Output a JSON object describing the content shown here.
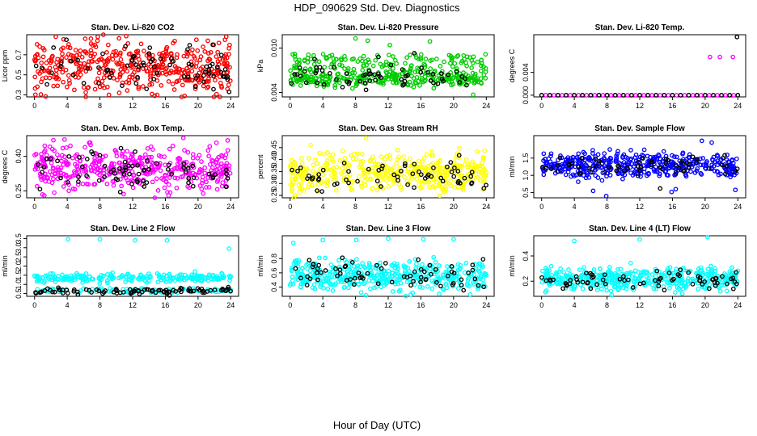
{
  "figure": {
    "title": "HDP_090629  Std. Dev. Diagnostics",
    "xlabel": "Hour of Day (UTC)"
  },
  "chart_data": [
    {
      "type": "scatter",
      "title": "Stan. Dev. Li-820 CO2",
      "ylabel": "Licor ppm",
      "xlim": [
        0,
        24
      ],
      "ylim": [
        0.28,
        0.9
      ],
      "x_ticks": [
        "0",
        "4",
        "8",
        "12",
        "16",
        "20",
        "24"
      ],
      "y_ticks": [
        {
          "v": 0.3,
          "label": "0.3"
        },
        {
          "v": 0.5,
          "label": "0.5"
        },
        {
          "v": 0.7,
          "label": "0.7"
        }
      ],
      "grid": false,
      "series": [
        {
          "color": "#ff0000",
          "count": 430,
          "center": 0.58,
          "spread": 0.13,
          "outliers": [
            [
              2.6,
              0.88
            ],
            [
              6.2,
              0.86
            ],
            [
              7.7,
              0.84
            ],
            [
              9.1,
              0.3
            ],
            [
              19.8,
              0.85
            ],
            [
              21.2,
              0.84
            ],
            [
              23.6,
              0.36
            ]
          ]
        },
        {
          "color": "#000000",
          "count": 70,
          "center": 0.56,
          "spread": 0.1,
          "outliers": [
            [
              3.9,
              0.85
            ],
            [
              13.7,
              0.36
            ],
            [
              21.8,
              0.8
            ],
            [
              23.8,
              0.33
            ]
          ]
        }
      ]
    },
    {
      "type": "scatter",
      "title": "Stan. Dev. Li-820 Pressure",
      "ylabel": "kPa",
      "xlim": [
        0,
        24
      ],
      "ylim": [
        0.0034,
        0.0118
      ],
      "x_ticks": [
        "0",
        "4",
        "8",
        "12",
        "16",
        "20",
        "24"
      ],
      "y_ticks": [
        {
          "v": 0.004,
          "label": "0.004"
        },
        {
          "v": 0.01,
          "label": "0.010"
        }
      ],
      "grid": false,
      "series": [
        {
          "color": "#00cc00",
          "count": 420,
          "center": 0.0058,
          "spread": 0.0005,
          "upper_band": [
            0.0066,
            0.0092
          ],
          "outliers": [
            [
              8.0,
              0.0113
            ],
            [
              9.5,
              0.011
            ],
            [
              12.2,
              0.0104
            ],
            [
              17.1,
              0.0109
            ],
            [
              22.4,
              0.0037
            ]
          ]
        },
        {
          "color": "#000000",
          "count": 60,
          "center": 0.006,
          "spread": 0.0008,
          "outliers": [
            [
              3.0,
              0.0085
            ],
            [
              10.8,
              0.0088
            ],
            [
              15.2,
              0.0093
            ]
          ]
        }
      ]
    },
    {
      "type": "scatter",
      "title": "Stan. Dev. Li-820 Temp.",
      "ylabel": "degrees C",
      "xlim": [
        0,
        24
      ],
      "ylim": [
        -0.0003,
        0.0106
      ],
      "x_ticks": [
        "0",
        "4",
        "8",
        "12",
        "16",
        "20",
        "24"
      ],
      "y_ticks": [
        {
          "v": 0.0,
          "label": "0.000"
        },
        {
          "v": 0.004,
          "label": "0.004"
        }
      ],
      "grid": false,
      "series": [
        {
          "color": "#ff00ff",
          "count": 49,
          "center": 0.0,
          "spread": 0.0,
          "line": true,
          "outliers": [
            [
              20.6,
              0.0067
            ],
            [
              21.8,
              0.0067
            ],
            [
              23.4,
              0.0067
            ]
          ]
        },
        {
          "color": "#000000",
          "count": 25,
          "center": 0.0,
          "spread": 0.0,
          "line": true,
          "outliers": [
            [
              23.9,
              0.0102
            ]
          ]
        }
      ]
    },
    {
      "type": "scatter",
      "title": "Stan. Dev. Amb. Box Temp.",
      "ylabel": "degrees C",
      "xlim": [
        0,
        24
      ],
      "ylim": [
        0.22,
        0.49
      ],
      "x_ticks": [
        "0",
        "4",
        "8",
        "12",
        "16",
        "20",
        "24"
      ],
      "y_ticks": [
        {
          "v": 0.25,
          "label": "0.25"
        },
        {
          "v": 0.4,
          "label": "0.40"
        }
      ],
      "grid": false,
      "series": [
        {
          "color": "#ff00ff",
          "count": 430,
          "center": 0.35,
          "spread": 0.045,
          "outliers": [
            [
              2.3,
              0.47
            ],
            [
              6.8,
              0.46
            ],
            [
              18.2,
              0.48
            ],
            [
              1.2,
              0.23
            ],
            [
              16.4,
              0.23
            ]
          ]
        },
        {
          "color": "#000000",
          "count": 70,
          "center": 0.34,
          "spread": 0.04,
          "outliers": [
            [
              19.4,
              0.27
            ],
            [
              11.9,
              0.28
            ]
          ]
        }
      ]
    },
    {
      "type": "scatter",
      "title": "Stan. Dev. Gas Stream RH",
      "ylabel": "percent",
      "xlim": [
        0,
        24
      ],
      "ylim": [
        0.24,
        0.5
      ],
      "x_ticks": [
        "0",
        "4",
        "8",
        "12",
        "16",
        "20",
        "24"
      ],
      "y_ticks": [
        {
          "v": 0.25,
          "label": "0.25"
        },
        {
          "v": 0.3,
          "label": "0.30"
        },
        {
          "v": 0.35,
          "label": "0.35"
        },
        {
          "v": 0.4,
          "label": "0.40"
        },
        {
          "v": 0.45,
          "label": "0.45"
        }
      ],
      "grid": false,
      "series": [
        {
          "color": "#ffff00",
          "count": 430,
          "center": 0.345,
          "spread": 0.04,
          "outliers": [
            [
              9.3,
              0.49
            ],
            [
              2.5,
              0.46
            ],
            [
              0.6,
              0.25
            ]
          ]
        },
        {
          "color": "#000000",
          "count": 60,
          "center": 0.335,
          "spread": 0.03,
          "outliers": [
            [
              3.3,
              0.27
            ],
            [
              23.7,
              0.28
            ]
          ]
        }
      ]
    },
    {
      "type": "scatter",
      "title": "Stan. Dev. Sample Flow",
      "ylabel": "ml/min",
      "xlim": [
        0,
        24
      ],
      "ylim": [
        0.35,
        2.15
      ],
      "x_ticks": [
        "0",
        "4",
        "8",
        "12",
        "16",
        "20",
        "24"
      ],
      "y_ticks": [
        {
          "v": 0.5,
          "label": "0.5"
        },
        {
          "v": 1.0,
          "label": "1.0"
        },
        {
          "v": 1.5,
          "label": "1.5"
        }
      ],
      "grid": false,
      "series": [
        {
          "color": "#0000ff",
          "count": 430,
          "center": 1.3,
          "spread": 0.18,
          "outliers": [
            [
              7.9,
              0.4
            ],
            [
              6.3,
              0.55
            ],
            [
              15.9,
              0.52
            ],
            [
              16.4,
              0.6
            ],
            [
              19.6,
              2.0
            ],
            [
              20.8,
              1.95
            ],
            [
              23.7,
              0.58
            ]
          ]
        },
        {
          "color": "#000000",
          "count": 60,
          "center": 1.28,
          "spread": 0.14,
          "outliers": [
            [
              14.5,
              0.62
            ],
            [
              23.6,
              1.1
            ]
          ]
        }
      ]
    },
    {
      "type": "scatter",
      "title": "Stan. Dev. Line 2 Flow",
      "ylabel": "ml/min",
      "xlim": [
        0,
        24
      ],
      "ylim": [
        0.35,
        3.65
      ],
      "x_ticks": [
        "0",
        "4",
        "8",
        "12",
        "16",
        "20",
        "24"
      ],
      "y_ticks": [
        {
          "v": 0.5,
          "label": "0.5"
        },
        {
          "v": 1.0,
          "label": "1.0"
        },
        {
          "v": 1.5,
          "label": "1.5"
        },
        {
          "v": 2.0,
          "label": "2.0"
        },
        {
          "v": 2.5,
          "label": "2.5"
        },
        {
          "v": 3.0,
          "label": "3.0"
        },
        {
          "v": 3.5,
          "label": "3.5"
        }
      ],
      "grid": false,
      "series": [
        {
          "color": "#00ffff",
          "count": 330,
          "center": 1.35,
          "spread": 0.12,
          "lower_band": [
            0.55,
            0.78
          ],
          "outliers": [
            [
              4.1,
              3.45
            ],
            [
              8.0,
              3.45
            ],
            [
              12.3,
              3.4
            ],
            [
              16.2,
              3.4
            ],
            [
              23.8,
              2.95
            ]
          ]
        },
        {
          "color": "#000000",
          "count": 90,
          "center": 0.65,
          "spread": 0.08,
          "outliers": [
            [
              16.5,
              0.4
            ],
            [
              23.7,
              0.85
            ]
          ]
        }
      ]
    },
    {
      "type": "scatter",
      "title": "Stan. Dev. Line 3 Flow",
      "ylabel": "ml/min",
      "xlim": [
        0,
        24
      ],
      "ylim": [
        0.27,
        1.12
      ],
      "x_ticks": [
        "0",
        "4",
        "8",
        "12",
        "16",
        "20",
        "24"
      ],
      "y_ticks": [
        {
          "v": 0.4,
          "label": "0.4"
        },
        {
          "v": 0.6,
          "label": "0.6"
        },
        {
          "v": 0.8,
          "label": "0.8"
        }
      ],
      "grid": false,
      "series": [
        {
          "color": "#00ffff",
          "count": 430,
          "center": 0.56,
          "spread": 0.11,
          "outliers": [
            [
              0.4,
              1.02
            ],
            [
              4.0,
              1.06
            ],
            [
              8.1,
              1.06
            ],
            [
              12.0,
              1.08
            ],
            [
              16.3,
              1.07
            ],
            [
              20.0,
              1.07
            ]
          ]
        },
        {
          "color": "#000000",
          "count": 70,
          "center": 0.58,
          "spread": 0.1,
          "outliers": [
            [
              23.6,
              0.79
            ]
          ]
        }
      ]
    },
    {
      "type": "scatter",
      "title": "Stan. Dev. Line 4 (LT) Flow",
      "ylabel": "ml/min",
      "xlim": [
        0,
        24
      ],
      "ylim": [
        0.08,
        0.56
      ],
      "x_ticks": [
        "0",
        "4",
        "8",
        "12",
        "16",
        "20",
        "24"
      ],
      "y_ticks": [
        {
          "v": 0.2,
          "label": "0.2"
        },
        {
          "v": 0.4,
          "label": "0.4"
        }
      ],
      "grid": false,
      "series": [
        {
          "color": "#00ffff",
          "count": 430,
          "center": 0.22,
          "spread": 0.045,
          "outliers": [
            [
              4.0,
              0.52
            ],
            [
              12.0,
              0.53
            ],
            [
              20.3,
              0.55
            ]
          ]
        },
        {
          "color": "#000000",
          "count": 70,
          "center": 0.21,
          "spread": 0.04,
          "outliers": [
            [
              23.8,
              0.27
            ]
          ]
        }
      ]
    }
  ]
}
